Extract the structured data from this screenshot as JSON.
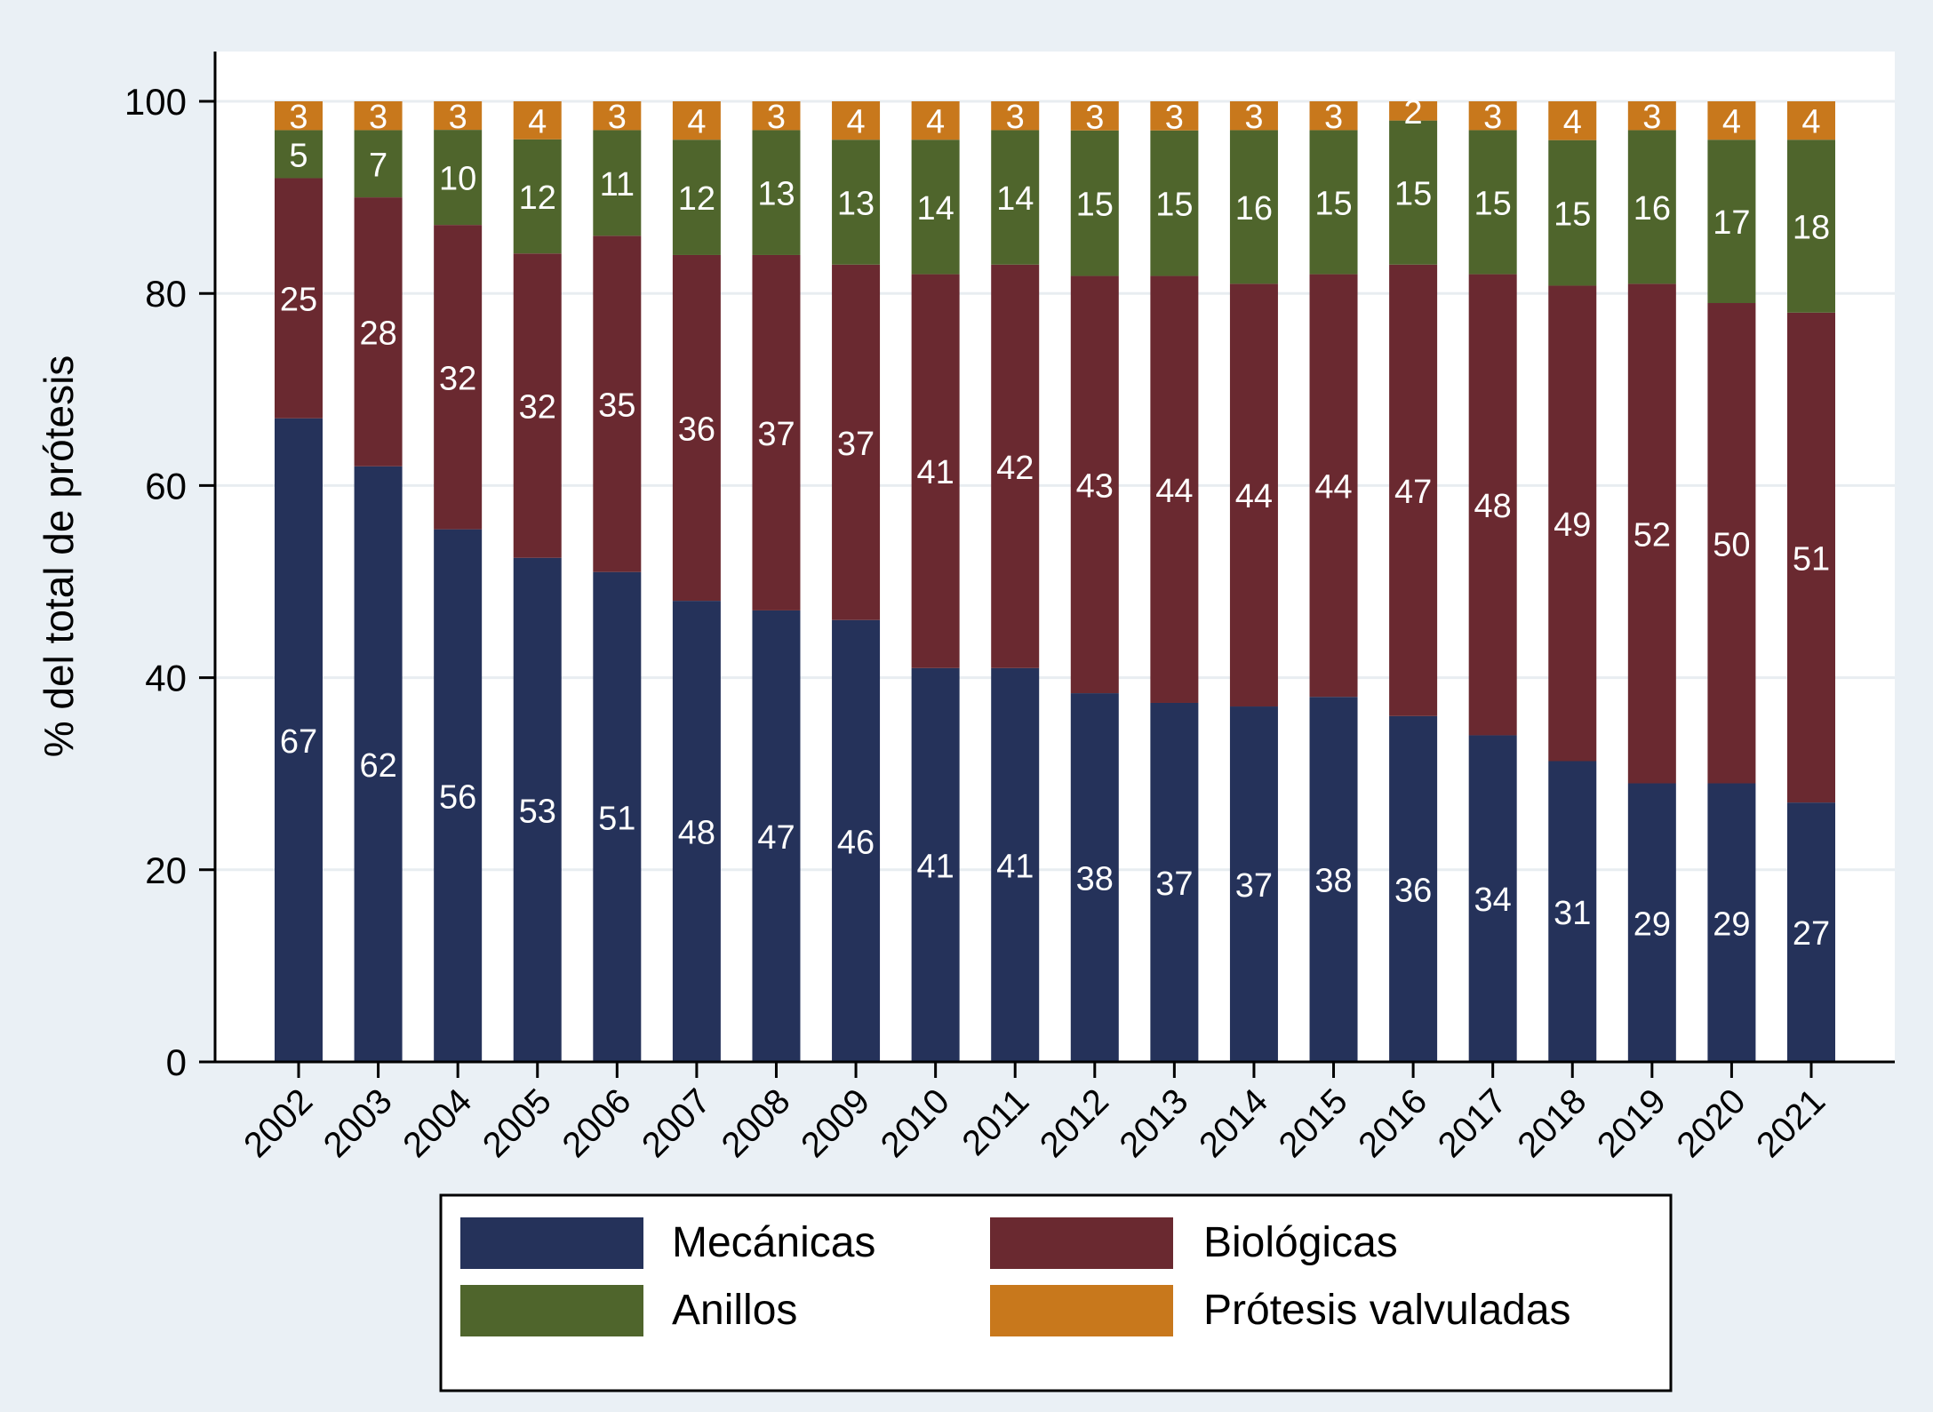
{
  "chart_data": {
    "type": "bar",
    "stacked": true,
    "ylabel": "% del total de prótesis",
    "xlabel": "",
    "ylim": [
      0,
      100
    ],
    "yticks": [
      0,
      20,
      40,
      60,
      80,
      100
    ],
    "grid": true,
    "legend_position": "bottom",
    "categories": [
      "2002",
      "2003",
      "2004",
      "2005",
      "2006",
      "2007",
      "2008",
      "2009",
      "2010",
      "2011",
      "2012",
      "2013",
      "2014",
      "2015",
      "2016",
      "2017",
      "2018",
      "2019",
      "2020",
      "2021"
    ],
    "series": [
      {
        "name": "Mecánicas",
        "color": "#25325a",
        "values": [
          67,
          62,
          56,
          53,
          51,
          48,
          47,
          46,
          41,
          41,
          38,
          37,
          37,
          38,
          36,
          34,
          31,
          29,
          29,
          27
        ],
        "labels": [
          "67",
          "62",
          "56",
          "53",
          "51",
          "48",
          "47",
          "46",
          "41",
          "41",
          "38",
          "37",
          "37",
          "38",
          "36",
          "34",
          "31",
          "29",
          "29",
          "27"
        ]
      },
      {
        "name": "Biológicas",
        "color": "#6a2930",
        "values": [
          25,
          28,
          32,
          32,
          35,
          36,
          37,
          37,
          41,
          42,
          43,
          44,
          44,
          44,
          47,
          48,
          49,
          52,
          50,
          51
        ],
        "labels": [
          "25",
          "28",
          "32",
          "32",
          "35",
          "36",
          "37",
          "37",
          "41",
          "42",
          "43",
          "44",
          "44",
          "44",
          "47",
          "48",
          "49",
          "52",
          "50",
          "51"
        ]
      },
      {
        "name": "Anillos",
        "color": "#4f652c",
        "values": [
          5,
          7,
          10,
          12,
          11,
          12,
          13,
          13,
          14,
          14,
          15,
          15,
          16,
          15,
          15,
          15,
          15,
          16,
          17,
          18
        ],
        "labels": [
          "5",
          "7",
          "10",
          "12",
          "11",
          "12",
          "13",
          "13",
          "14",
          "14",
          "15",
          "15",
          "16",
          "15",
          "15",
          "15",
          "15",
          "16",
          "17",
          "18"
        ]
      },
      {
        "name": "Prótesis valvuladas",
        "color": "#c8781c",
        "values": [
          3,
          3,
          3,
          4,
          3,
          4,
          3,
          4,
          4,
          3,
          3,
          3,
          3,
          3,
          2,
          3,
          4,
          3,
          4,
          4
        ],
        "labels": [
          "3",
          "3",
          "3",
          "4",
          "3",
          "4",
          "3",
          "4",
          "4",
          "3",
          "3",
          "3",
          "3",
          "3",
          "2",
          "3",
          "4",
          "3",
          "4",
          "4"
        ]
      }
    ]
  }
}
